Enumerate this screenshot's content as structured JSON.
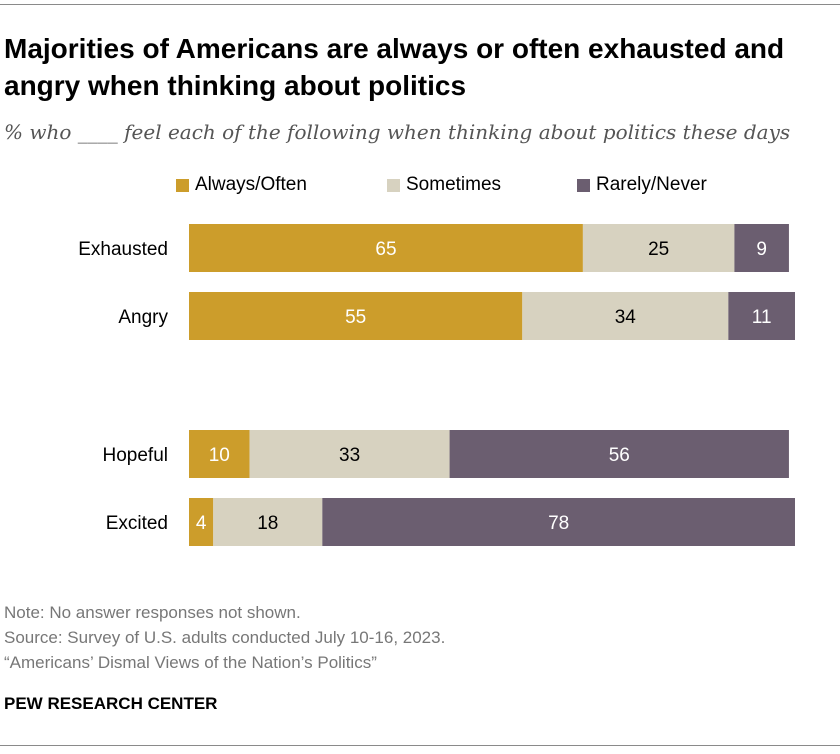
{
  "title": "Majorities of Americans are always or often exhausted and angry when thinking about politics",
  "subtitle": "% who ____ feel each of the following when thinking about politics these days",
  "chart_data": {
    "type": "bar",
    "orientation": "horizontal-stacked",
    "categories": [
      "Exhausted",
      "Angry",
      "Hopeful",
      "Excited"
    ],
    "series": [
      {
        "name": "Always/Often",
        "color": "#CC9D2B",
        "values": [
          65,
          55,
          10,
          4
        ]
      },
      {
        "name": "Sometimes",
        "color": "#D7D2C0",
        "values": [
          25,
          34,
          33,
          18
        ]
      },
      {
        "name": "Rarely/Never",
        "color": "#6B5E70",
        "values": [
          9,
          11,
          56,
          78
        ]
      }
    ],
    "xlim": [
      0,
      100
    ],
    "legend": "top",
    "grid": false
  },
  "notes": {
    "note": "Note: No answer responses not shown.",
    "source": "Source: Survey of U.S. adults conducted July 10-16, 2023.",
    "report": "“Americans’ Dismal Views of the Nation’s Politics”"
  },
  "brand": "PEW RESEARCH CENTER"
}
